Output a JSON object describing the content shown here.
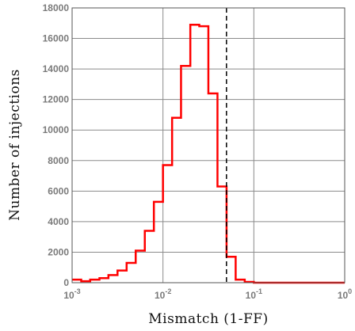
{
  "chart_data": {
    "type": "histogram",
    "xlabel": "Mismatch (1-FF)",
    "ylabel": "Number of injections",
    "x_scale": "log",
    "xlim": [
      0.001,
      1
    ],
    "ylim": [
      0,
      18000
    ],
    "grid": true,
    "x_ticks": [
      {
        "value": 0.001,
        "base": "10",
        "exp": "-3"
      },
      {
        "value": 0.01,
        "base": "10",
        "exp": "-2"
      },
      {
        "value": 0.1,
        "base": "10",
        "exp": "-1"
      },
      {
        "value": 1,
        "base": "10",
        "exp": "0"
      }
    ],
    "y_ticks": [
      0,
      2000,
      4000,
      6000,
      8000,
      10000,
      12000,
      14000,
      16000,
      18000
    ],
    "y_tick_labels": [
      "0",
      "2000",
      "4000",
      "6000",
      "8000",
      "10000",
      "12000",
      "14000",
      "16000",
      "18000"
    ],
    "bin_edges": [
      0.001,
      0.00126,
      0.00158,
      0.002,
      0.00251,
      0.00316,
      0.00398,
      0.00501,
      0.00631,
      0.00794,
      0.01,
      0.0126,
      0.0158,
      0.02,
      0.0251,
      0.0316,
      0.0398,
      0.0501,
      0.0631,
      0.0794,
      0.1,
      1
    ],
    "counts": [
      200,
      100,
      200,
      300,
      500,
      800,
      1300,
      2100,
      3400,
      5300,
      7700,
      10800,
      14200,
      16900,
      16800,
      12400,
      6300,
      1700,
      200,
      50,
      0
    ],
    "series_color": "#ff0000",
    "threshold_x": 0.05,
    "threshold_style": "dashed black vertical line"
  }
}
